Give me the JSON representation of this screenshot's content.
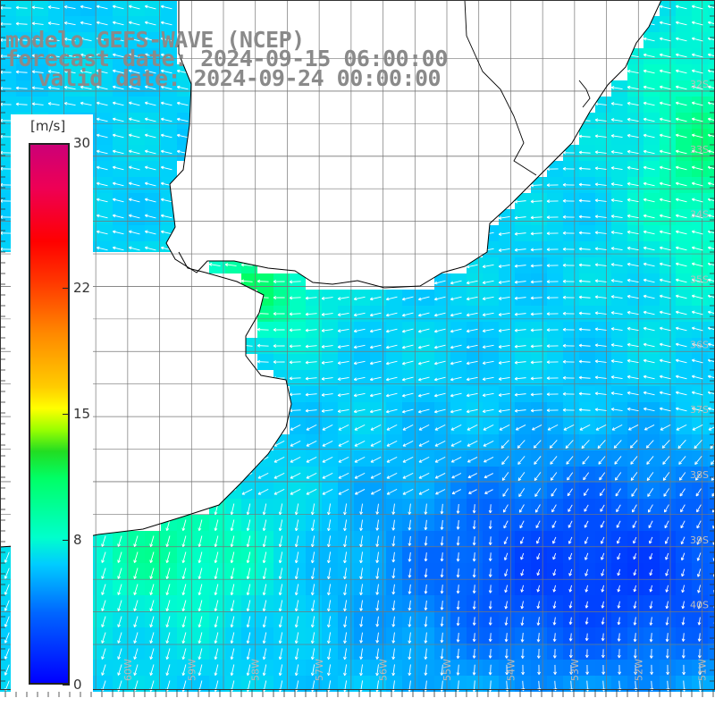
{
  "title": {
    "line1": "modelo GEFS-WAVE (NCEP)",
    "line2": "forecast date: 2024-09-15 06:00:00",
    "line3": "valid date: 2024-09-24 00:00:00"
  },
  "colorbar": {
    "unit": "[m/s]",
    "ticks": [
      "30",
      "22",
      "15",
      "8",
      "0"
    ],
    "tick_values": [
      30,
      22,
      15,
      8,
      0
    ],
    "range": [
      0,
      30
    ],
    "colors": [
      "#0000ff",
      "#00ccff",
      "#00ff66",
      "#ffff00",
      "#ff8800",
      "#ff0000",
      "#cc0077"
    ]
  },
  "map": {
    "lat_labels": [
      "32S",
      "33S",
      "34S",
      "35S",
      "36S",
      "37S",
      "38S",
      "39S",
      "40S"
    ],
    "lon_labels": [
      "61W",
      "60W",
      "59W",
      "58W",
      "57W",
      "56W",
      "55W",
      "54W",
      "53W",
      "52W",
      "51W"
    ],
    "lat_values": [
      -32,
      -33,
      -34,
      -35,
      -36,
      -37,
      -38,
      -39,
      -40
    ],
    "lon_values": [
      -61,
      -60,
      -59,
      -58,
      -57,
      -56,
      -55,
      -54,
      -53,
      -52,
      -51
    ],
    "lat_range": [
      -41.2,
      -30.6
    ],
    "lon_range": [
      -62.0,
      -50.8
    ],
    "grid": true,
    "field": "wind speed and direction",
    "arrow_color": "#ffffff",
    "coast_color": "#000000",
    "grid_color": "#777777"
  }
}
